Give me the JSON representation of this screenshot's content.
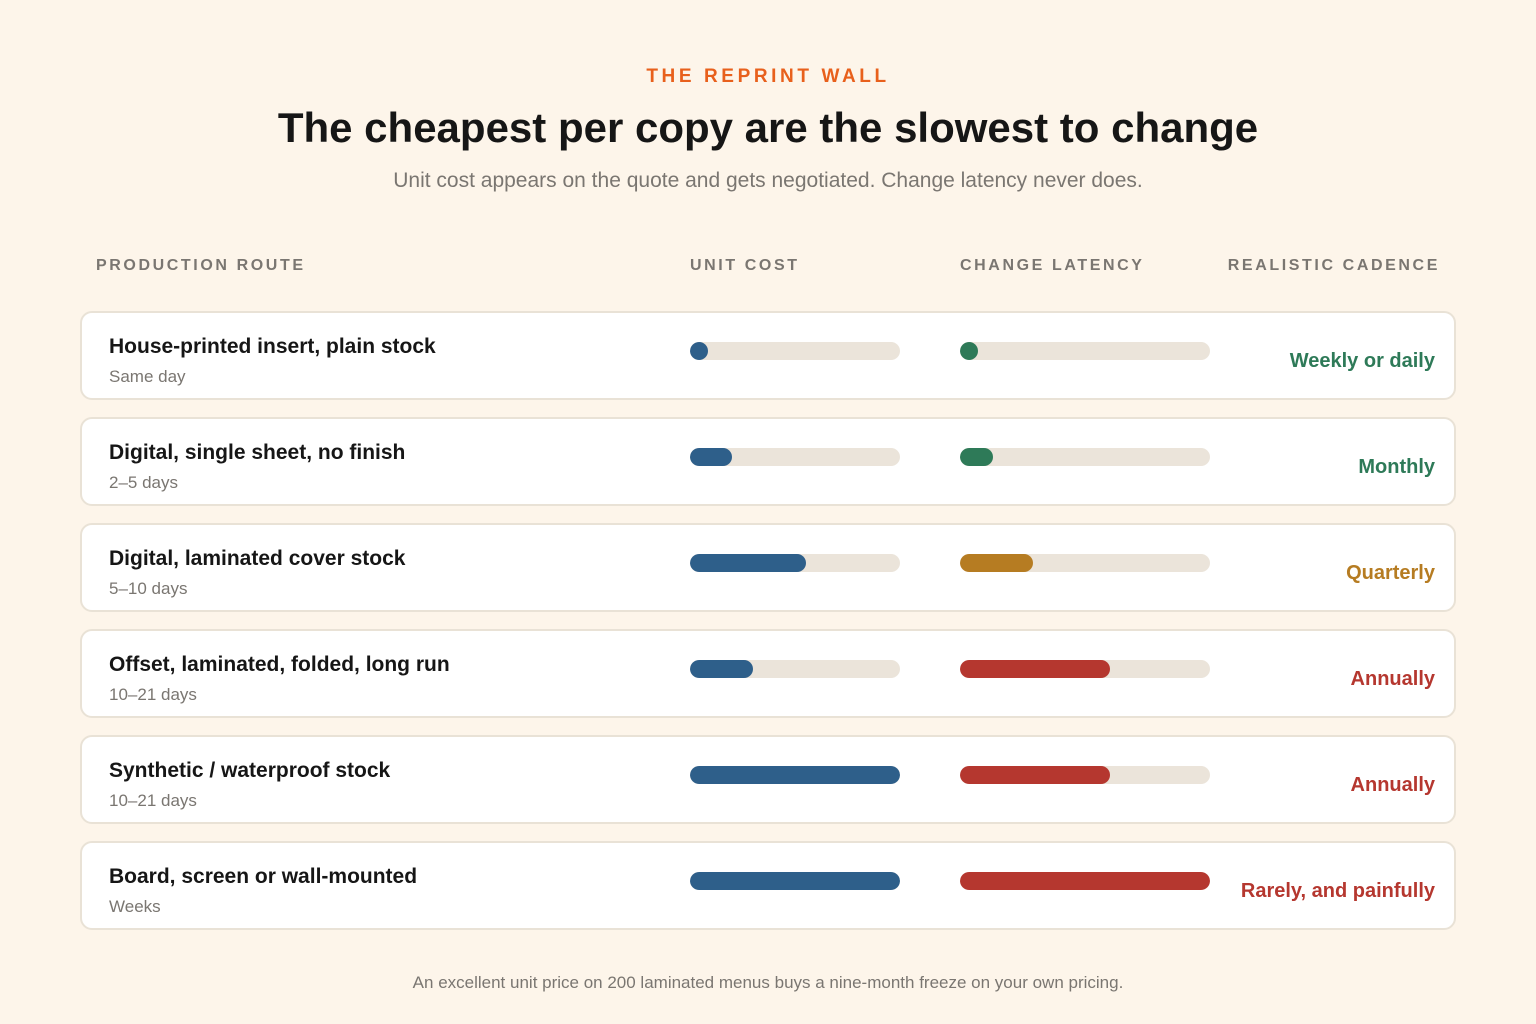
{
  "header": {
    "eyebrow": "THE REPRINT WALL",
    "title": "The cheapest per copy are the slowest to change",
    "subtitle": "Unit cost appears on the quote and gets negotiated. Change latency never does."
  },
  "columns": {
    "route": "PRODUCTION ROUTE",
    "cost": "UNIT COST",
    "latency": "CHANGE LATENCY",
    "cadence": "REALISTIC CADENCE"
  },
  "colors": {
    "background": "#fdf5ea",
    "eyebrow": "#e8601c",
    "cost_bar": "#2e5f8a",
    "track": "#ebe4da",
    "green": "#2e7a58",
    "amber": "#b67c22",
    "red": "#b5372f"
  },
  "chart_data": {
    "type": "table",
    "rows": [
      {
        "route": "House-printed insert, plain stock",
        "lead_time": "Same day",
        "unit_cost": 0.02,
        "change_latency": 0.02,
        "cadence": "Weekly or daily",
        "status": "green"
      },
      {
        "route": "Digital, single sheet, no finish",
        "lead_time": "2–5 days",
        "unit_cost": 0.2,
        "change_latency": 0.13,
        "cadence": "Monthly",
        "status": "green"
      },
      {
        "route": "Digital, laminated cover stock",
        "lead_time": "5–10 days",
        "unit_cost": 0.55,
        "change_latency": 0.29,
        "cadence": "Quarterly",
        "status": "amber"
      },
      {
        "route": "Offset, laminated, folded, long run",
        "lead_time": "10–21 days",
        "unit_cost": 0.3,
        "change_latency": 0.6,
        "cadence": "Annually",
        "status": "red"
      },
      {
        "route": "Synthetic / waterproof stock",
        "lead_time": "10–21 days",
        "unit_cost": 1.0,
        "change_latency": 0.6,
        "cadence": "Annually",
        "status": "red"
      },
      {
        "route": "Board, screen or wall-mounted",
        "lead_time": "Weeks",
        "unit_cost": 1.0,
        "change_latency": 1.0,
        "cadence": "Rarely, and painfully",
        "status": "red"
      }
    ]
  },
  "footnote": "An excellent unit price on 200 laminated menus buys a nine-month freeze on your own pricing."
}
